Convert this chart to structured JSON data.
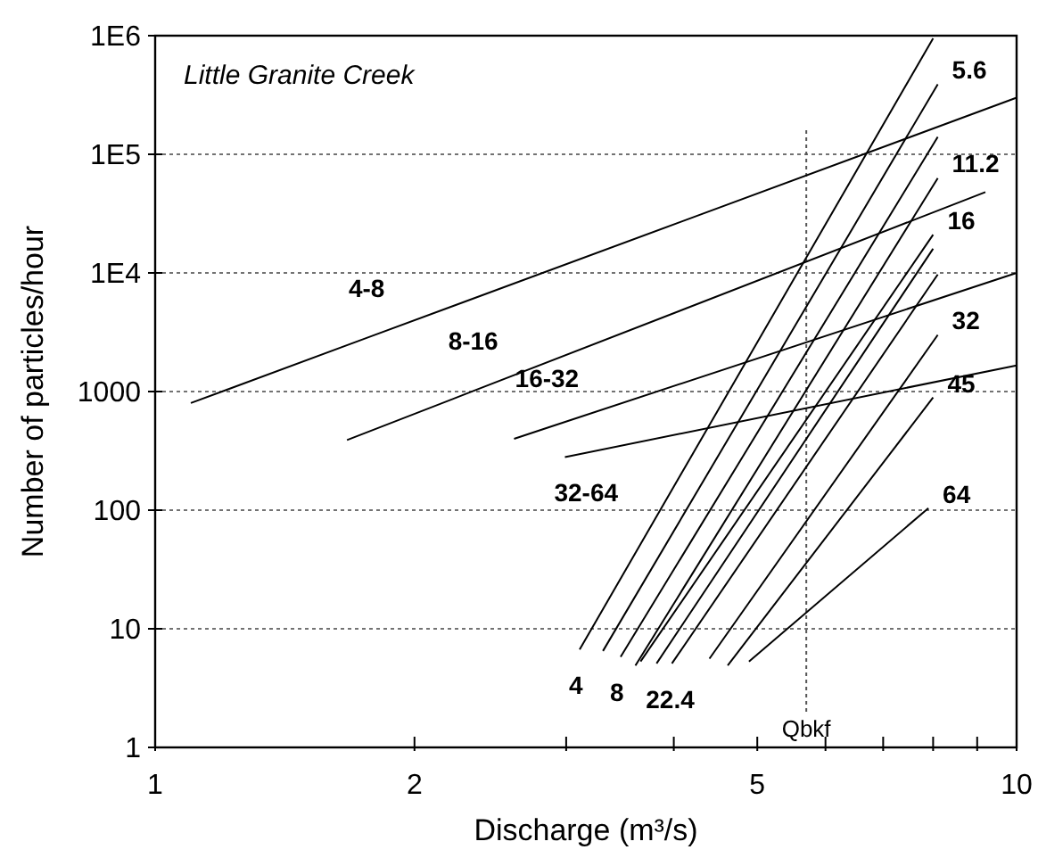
{
  "chart_data": {
    "type": "line",
    "title": "Little Granite Creek",
    "xlabel": "Discharge (m³/s)",
    "ylabel": "Number of particles/hour",
    "log": "xy",
    "grid": "y",
    "marker": "none",
    "line_style": "solid",
    "xlim": [
      1,
      10
    ],
    "ylim": [
      1,
      1000000
    ],
    "xticks": [
      1,
      2,
      {
        "value": 3,
        "label": null
      },
      {
        "value": 4,
        "label": null
      },
      5,
      {
        "value": 6,
        "label": null
      },
      {
        "value": 7,
        "label": null
      },
      {
        "value": 8,
        "label": null
      },
      {
        "value": 9,
        "label": null
      },
      10
    ],
    "yticks": [
      1,
      10,
      100,
      1000,
      {
        "value": 10000,
        "label": "1E4"
      },
      {
        "value": 100000,
        "label": "1E5"
      },
      {
        "value": 1000000,
        "label": "1E6"
      }
    ],
    "series": [
      {
        "color": "#000000",
        "x": [
          1.1,
          1.76,
          10
        ],
        "values": [
          800,
          2830,
          300000
        ]
      },
      {
        "color": "#000000",
        "x": [
          1.67,
          2.34,
          9.2
        ],
        "values": [
          390,
          1010,
          48000
        ]
      },
      {
        "color": "#000000",
        "x": [
          2.61,
          2.85,
          10
        ],
        "values": [
          400,
          494,
          10000
        ]
      },
      {
        "color": "#000000",
        "x": [
          2.99,
          10
        ],
        "values": [
          280,
          1660
        ]
      },
      {
        "color": "#000000",
        "x": [
          3.11,
          8.0
        ],
        "values": [
          6.7,
          950000
        ]
      },
      {
        "color": "#000000",
        "x": [
          3.31,
          8.1
        ],
        "values": [
          6.5,
          390000
        ]
      },
      {
        "color": "#000000",
        "x": [
          3.47,
          8.1
        ],
        "values": [
          5.8,
          140000
        ]
      },
      {
        "color": "#000000",
        "x": [
          3.61,
          8.1
        ],
        "values": [
          4.9,
          63000
        ]
      },
      {
        "color": "#000000",
        "x": [
          3.66,
          8.0
        ],
        "values": [
          5.3,
          21000
        ]
      },
      {
        "color": "#000000",
        "x": [
          3.82,
          8.0
        ],
        "values": [
          5.1,
          16000
        ]
      },
      {
        "color": "#000000",
        "x": [
          3.98,
          8.1
        ],
        "values": [
          5.1,
          9700
        ]
      },
      {
        "color": "#000000",
        "x": [
          4.4,
          8.1
        ],
        "values": [
          5.6,
          3000
        ]
      },
      {
        "color": "#000000",
        "x": [
          4.62,
          8.0
        ],
        "values": [
          4.9,
          890
        ]
      },
      {
        "color": "#000000",
        "x": [
          4.89,
          7.9
        ],
        "values": [
          5.3,
          104
        ]
      }
    ],
    "ref_lines": [
      {
        "axis": "x",
        "value": 5.7,
        "label": "Qbkf",
        "line_style": "dotted",
        "color": "#555555"
      }
    ],
    "annotations": [
      {
        "text": "4-8",
        "x": 1.76,
        "y": 2830
      },
      {
        "text": "8-16",
        "x": 2.34,
        "y": 1010
      },
      {
        "text": "16-32",
        "x": 2.85,
        "y": 494
      },
      {
        "text": "32-64",
        "x": 2.99,
        "y": 280
      },
      {
        "text": "5.6",
        "x": 8.1,
        "y": 390000
      },
      {
        "text": "11.2",
        "x": 8.1,
        "y": 63000
      },
      {
        "text": "16",
        "x": 8.0,
        "y": 21000
      },
      {
        "text": "32",
        "x": 8.1,
        "y": 3000
      },
      {
        "text": "45",
        "x": 8.0,
        "y": 890
      },
      {
        "text": "64",
        "x": 7.9,
        "y": 104
      },
      {
        "text": "4",
        "x": 3.11,
        "y": 6.7
      },
      {
        "text": "8",
        "x": 3.47,
        "y": 5.8
      },
      {
        "text": "22.4",
        "x": 3.82,
        "y": 5.1
      }
    ]
  }
}
